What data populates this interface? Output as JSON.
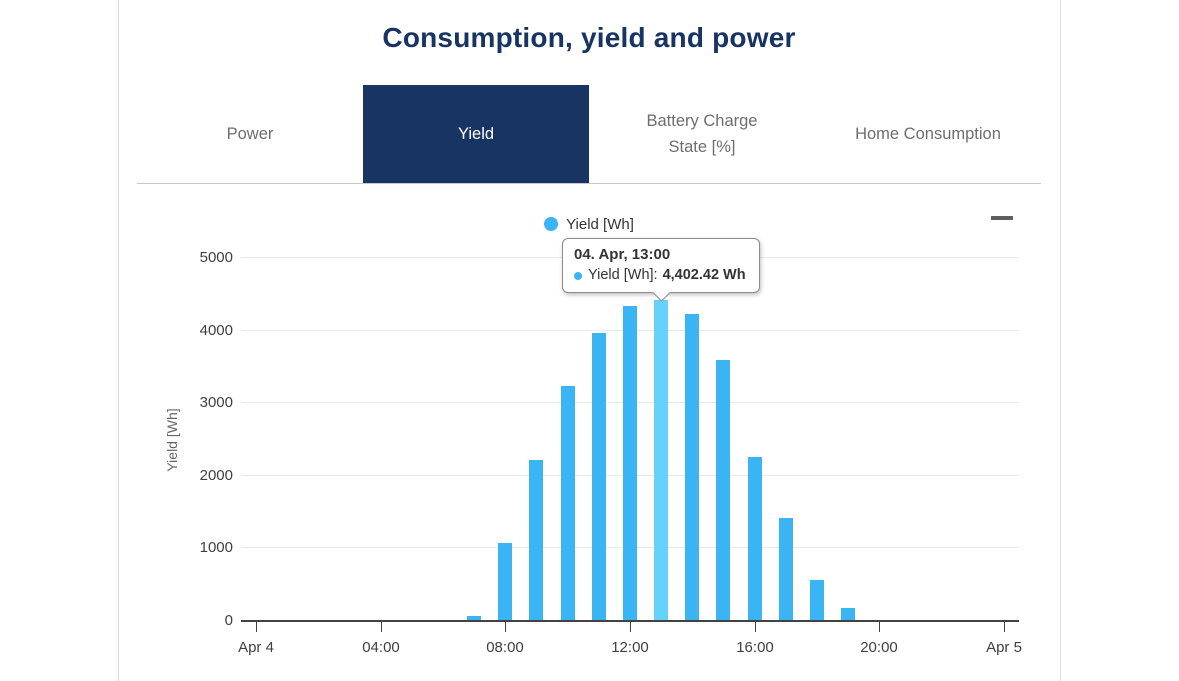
{
  "page": {
    "title": "Consumption, yield and power"
  },
  "tabs": [
    {
      "label": "Power",
      "active": false
    },
    {
      "label": "Yield",
      "active": true
    },
    {
      "label": "Battery Charge State [%]",
      "active": false
    },
    {
      "label": "Home Consumption",
      "active": false
    }
  ],
  "colors": {
    "navy": "#173463",
    "bar": "#3AB4F2",
    "bar_highlight": "#64D2FC",
    "grid": "#E9E9E9",
    "axis": "#424242",
    "inactive_tab": "#6E6E6E"
  },
  "chart": {
    "legend": {
      "label": "Yield [Wh]",
      "marker_icon": "circle"
    },
    "menu_icon": "hamburger-menu",
    "tooltip": {
      "title": "04. Apr, 13:00",
      "series_label": "Yield [Wh]:",
      "value": "4,402.42 Wh"
    }
  },
  "chart_data": {
    "type": "bar",
    "title": "Consumption, yield and power",
    "xlabel": "",
    "ylabel": "Yield [Wh]",
    "ylim": [
      0,
      5000
    ],
    "yticks": [
      0,
      1000,
      2000,
      3000,
      4000,
      5000
    ],
    "grid": "horizontal",
    "legend_position": "top-center",
    "xticks": [
      {
        "hour": 0,
        "label": "Apr 4"
      },
      {
        "hour": 4,
        "label": "04:00"
      },
      {
        "hour": 8,
        "label": "08:00"
      },
      {
        "hour": 12,
        "label": "12:00"
      },
      {
        "hour": 16,
        "label": "16:00"
      },
      {
        "hour": 20,
        "label": "20:00"
      },
      {
        "hour": 24,
        "label": "Apr 5"
      }
    ],
    "series": [
      {
        "name": "Yield [Wh]",
        "points": [
          {
            "hour": 7,
            "value": 60
          },
          {
            "hour": 8,
            "value": 1060
          },
          {
            "hour": 9,
            "value": 2200
          },
          {
            "hour": 10,
            "value": 3230
          },
          {
            "hour": 11,
            "value": 3950
          },
          {
            "hour": 12,
            "value": 4330
          },
          {
            "hour": 13,
            "value": 4402.42,
            "highlighted": true
          },
          {
            "hour": 14,
            "value": 4210
          },
          {
            "hour": 15,
            "value": 3580
          },
          {
            "hour": 16,
            "value": 2250
          },
          {
            "hour": 17,
            "value": 1410
          },
          {
            "hour": 18,
            "value": 550
          },
          {
            "hour": 19,
            "value": 170
          }
        ]
      }
    ]
  }
}
